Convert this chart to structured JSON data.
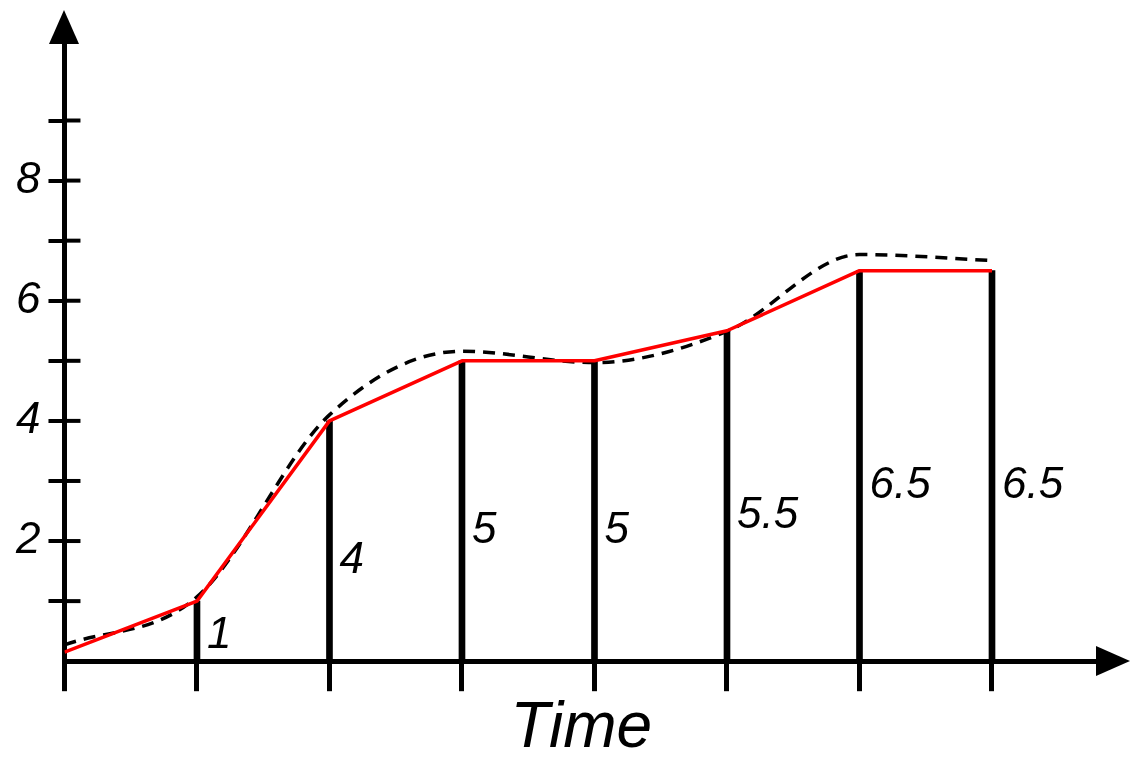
{
  "chart_data": {
    "type": "line",
    "xlabel": "Time",
    "categories": [
      null,
      null,
      null,
      null,
      null,
      null,
      null,
      null
    ],
    "ylim": [
      0,
      10.3
    ],
    "tick_labels": "y",
    "grid": false,
    "legend": false,
    "marker": "none",
    "yticks": [
      {
        "value": 1,
        "label": null
      },
      2,
      {
        "value": 3,
        "label": null
      },
      4,
      {
        "value": 5,
        "label": null
      },
      6,
      {
        "value": 7,
        "label": null
      },
      8,
      {
        "value": 9,
        "label": null
      }
    ],
    "series": [
      {
        "type": "bar",
        "color": "#000000",
        "values": [
          null,
          1,
          4,
          5,
          5,
          5.5,
          6.5,
          6.5
        ],
        "value_labels": [
          null,
          "1",
          "4",
          "5",
          "5",
          "5.5",
          "6.5",
          "6.5"
        ]
      },
      {
        "color": "#ff0000",
        "line_style": "solid",
        "values": [
          0.15,
          1,
          4,
          5,
          5,
          5.5,
          6.5,
          6.5
        ]
      },
      {
        "color": "#000000",
        "line_style": "dashed",
        "values": [
          0.27,
          1.07,
          4.1,
          5.16,
          4.97,
          5.49,
          6.77,
          6.67
        ]
      }
    ]
  }
}
